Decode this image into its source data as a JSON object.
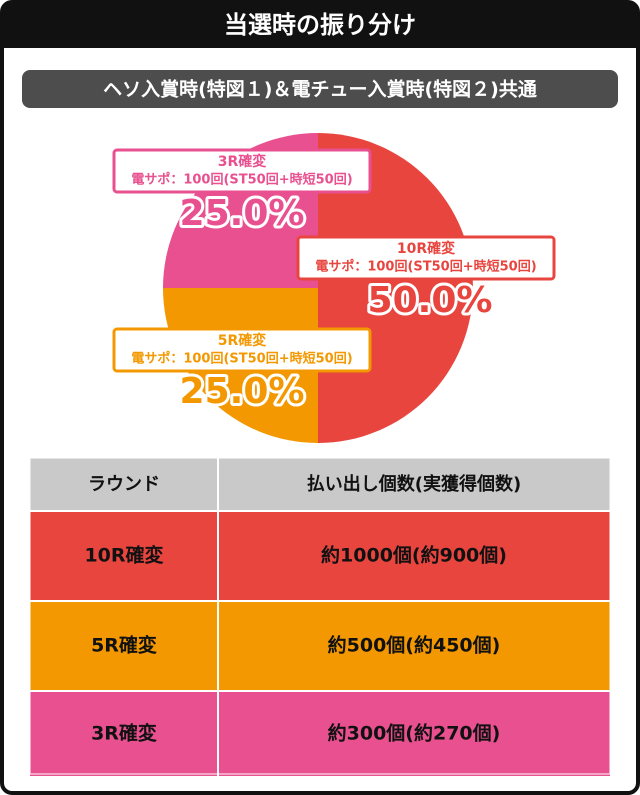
{
  "header": {
    "title": "当選時の振り分け",
    "subtitle": "ヘソ入賞時(特図１)＆電チュー入賞時(特図２)共通"
  },
  "chart_data": {
    "type": "pie",
    "categories": [
      "10R確変",
      "5R確変",
      "3R確変"
    ],
    "values": [
      50,
      25,
      25
    ],
    "value_labels": [
      "50.0%",
      "25.0%",
      "25.0%"
    ],
    "annotations": [
      "電サポ：100回(ST50回+時短50回)",
      "電サポ：100回(ST50回+時短50回)",
      "電サポ：100回(ST50回+時短50回)"
    ],
    "colors": [
      "#e8453f",
      "#f39800",
      "#e8508f"
    ]
  },
  "table": {
    "columns": [
      "ラウンド",
      "払い出し個数(実獲得個数)"
    ],
    "rows": [
      [
        "10R確変",
        "約1000個(約900個)"
      ],
      [
        "5R確変",
        "約500個(約450個)"
      ],
      [
        "3R確変",
        "約300個(約270個)"
      ]
    ]
  }
}
